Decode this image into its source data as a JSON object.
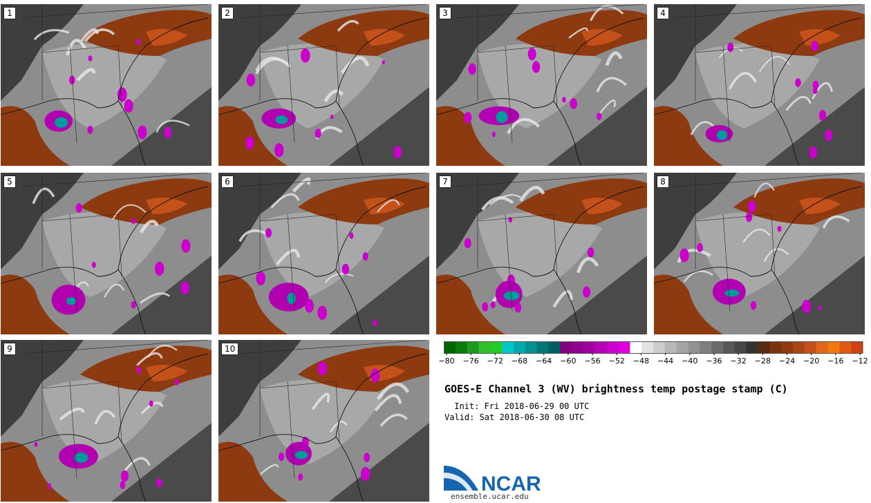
{
  "panels": [
    {
      "label": "1"
    },
    {
      "label": "2"
    },
    {
      "label": "3"
    },
    {
      "label": "4"
    },
    {
      "label": "5"
    },
    {
      "label": "6"
    },
    {
      "label": "7"
    },
    {
      "label": "8"
    },
    {
      "label": "9"
    },
    {
      "label": "10"
    }
  ],
  "colorbar": {
    "ticks": [
      "−80",
      "−76",
      "−72",
      "−68",
      "−64",
      "−60",
      "−56",
      "−52",
      "−48",
      "−44",
      "−40",
      "−36",
      "−32",
      "−28",
      "−24",
      "−20",
      "−16",
      "−12"
    ],
    "colors": [
      "#006400",
      "#0a7d0a",
      "#1e9a1e",
      "#2fbf2f",
      "#22cc22",
      "#00c8c8",
      "#00aaaa",
      "#009090",
      "#007878",
      "#006060",
      "#800080",
      "#900090",
      "#a000a0",
      "#b800b8",
      "#cc00cc",
      "#dd00dd",
      "#ffffff",
      "#e2e2e2",
      "#cccccc",
      "#b8b8b8",
      "#a5a5a5",
      "#929292",
      "#7f7f7f",
      "#6c6c6c",
      "#595959",
      "#464646",
      "#333333",
      "#5a2a10",
      "#7a3210",
      "#8e3a10",
      "#a84514",
      "#c4501a",
      "#e06818",
      "#f07a10",
      "#e05a14",
      "#d04010"
    ]
  },
  "title": "GOES-E Channel 3 (WV) brightness temp postage stamp (C)",
  "init_line": " Init: Fri 2018-06-29 00 UTC",
  "valid_line": "Valid: Sat 2018-06-30 08 UTC",
  "logo": {
    "text": "NCAR",
    "url": "ensemble.ucar.edu"
  },
  "colors": {
    "dry": "#8e3a10",
    "dark_gray": "#3a3a3a",
    "mid_gray": "#8a8a8a",
    "light_gray": "#c8c8c8",
    "magenta": "#cc00cc",
    "cyan": "#009a9a",
    "logo_blue": "#1565b0"
  }
}
